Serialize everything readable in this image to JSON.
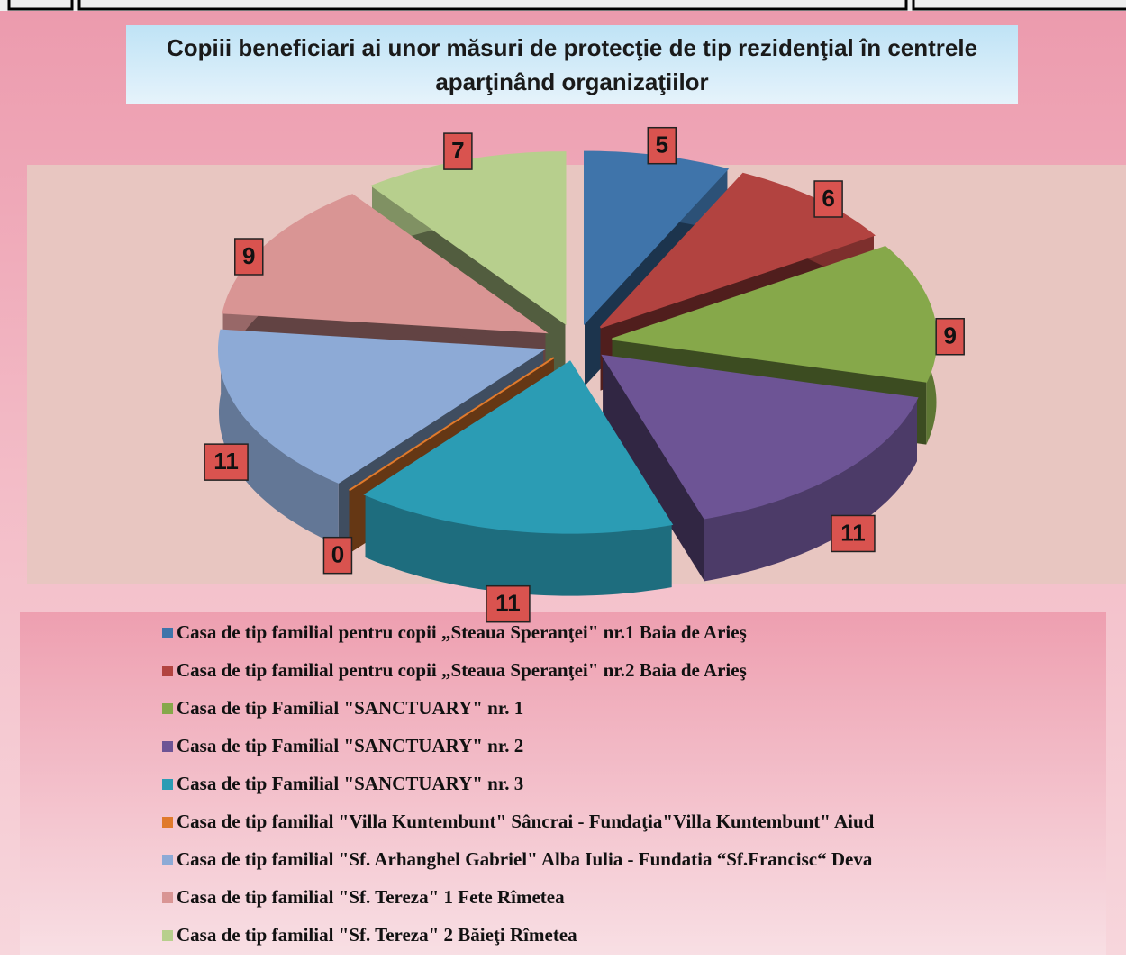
{
  "chart_data": {
    "type": "pie3d",
    "title": "Copiii beneficiari ai unor măsuri de protecţie de tip rezidenţial în centrele aparţinând organizaţiilor",
    "series": [
      {
        "name": "Casa de tip familial pentru copii  „Steaua Speranţei\" nr.1 Baia de Arieş",
        "color": "#3f74aa",
        "value": 5
      },
      {
        "name": "Casa de tip familial pentru copii  „Steaua Speranţei\" nr.2 Baia de Arieş",
        "color": "#b24340",
        "value": 6
      },
      {
        "name": "Casa de tip Familial \"SANCTUARY\" nr. 1",
        "color": "#86a84a",
        "value": 9
      },
      {
        "name": "Casa de tip Familial \"SANCTUARY\" nr. 2",
        "color": "#6d5495",
        "value": 11
      },
      {
        "name": "Casa de tip Familial \"SANCTUARY\" nr. 3",
        "color": "#2b9cb4",
        "value": 11
      },
      {
        "name": "Casa de tip familial \"Villa Kuntembunt\" Sâncrai - Fundaţia\"Villa Kuntembunt\" Aiud",
        "color": "#e07a2c",
        "value": 0
      },
      {
        "name": "Casa de tip familial \"Sf. Arhanghel Gabriel\" Alba Iulia - Fundatia “Sf.Francisc“ Deva",
        "color": "#8daad6",
        "value": 11
      },
      {
        "name": "Casa de tip familial \"Sf. Tereza\" 1 Fete Rîmetea",
        "color": "#d99594",
        "value": 9
      },
      {
        "name": "Casa de tip familial \"Sf. Tereza\" 2 Băieţi Rîmetea",
        "color": "#b7cf8d",
        "value": 7
      }
    ]
  }
}
